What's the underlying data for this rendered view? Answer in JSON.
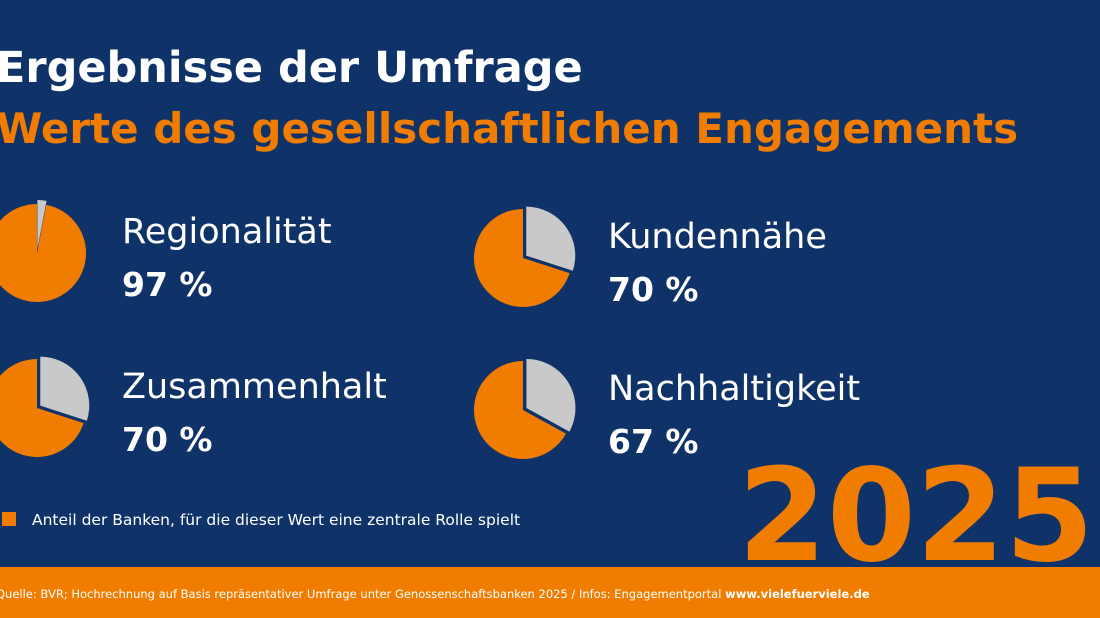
{
  "title": "Ergebnisse der Umfrage",
  "subtitle": "Werte des gesellschaftlichen Engagements",
  "legend": "Anteil der Banken, für die dieser Wert eine zentrale Rolle spielt",
  "year": "2025",
  "source": {
    "text": "Quelle: BVR; Hochrechnung auf Basis repräsentativer Umfrage unter Genossenschaftsbanken 2025 / Infos: Engagementportal",
    "link": "www.vielefuerviele.de"
  },
  "chart_data": [
    {
      "type": "pie",
      "title": "Regionalität",
      "values": [
        97
      ],
      "value_labels": [
        "97 %"
      ],
      "color": "#f07c00"
    },
    {
      "type": "pie",
      "title": "Kundennähe",
      "values": [
        70
      ],
      "value_labels": [
        "70 %"
      ],
      "color": "#f07c00"
    },
    {
      "type": "pie",
      "title": "Zusammenhalt",
      "values": [
        70
      ],
      "value_labels": [
        "70 %"
      ],
      "color": "#f07c00"
    },
    {
      "type": "pie",
      "title": "Nachhaltigkeit",
      "values": [
        67
      ],
      "value_labels": [
        "67 %"
      ],
      "color": "#f07c00"
    }
  ]
}
